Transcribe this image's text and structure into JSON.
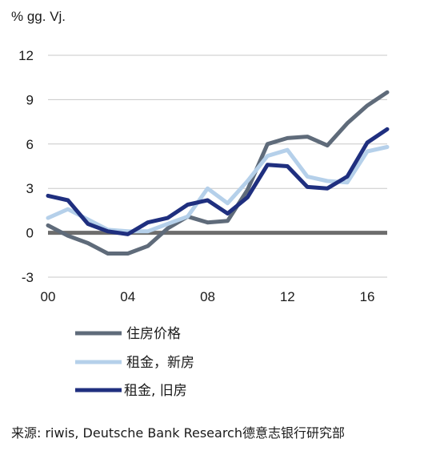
{
  "chart_data": {
    "type": "line",
    "ylabel": "% gg. Vj.",
    "ylim": [
      -3,
      12
    ],
    "yticks": [
      -3,
      0,
      3,
      6,
      9,
      12
    ],
    "xlim": [
      2000,
      2017
    ],
    "xticks": [
      {
        "year": 2000,
        "label": "00"
      },
      {
        "year": 2004,
        "label": "04"
      },
      {
        "year": 2008,
        "label": "08"
      },
      {
        "year": 2012,
        "label": "12"
      },
      {
        "year": 2016,
        "label": "16"
      }
    ],
    "grid": true,
    "zero_line": true,
    "legend_position": "bottom",
    "x": [
      2000,
      2001,
      2002,
      2003,
      2004,
      2005,
      2006,
      2007,
      2008,
      2009,
      2010,
      2011,
      2012,
      2013,
      2014,
      2015,
      2016,
      2017
    ],
    "series": [
      {
        "name": "住房价格",
        "color": "#5f6b7a",
        "values": [
          0.5,
          -0.2,
          -0.7,
          -1.4,
          -1.4,
          -0.9,
          0.3,
          1.1,
          0.7,
          0.8,
          2.9,
          6.0,
          6.4,
          6.5,
          5.9,
          7.4,
          8.6,
          9.5
        ]
      },
      {
        "name": " 租金，新房",
        "color": "#b5d0ea",
        "values": [
          1.0,
          1.6,
          0.9,
          0.2,
          0.1,
          0.1,
          0.6,
          1.1,
          3.0,
          2.0,
          3.5,
          5.2,
          5.6,
          3.8,
          3.5,
          3.4,
          5.5,
          5.8
        ]
      },
      {
        "name": "租金, 旧房",
        "color": "#1f2f7f",
        "values": [
          2.5,
          2.2,
          0.6,
          0.1,
          -0.1,
          0.7,
          1.0,
          1.9,
          2.2,
          1.3,
          2.4,
          4.6,
          4.5,
          3.1,
          3.0,
          3.8,
          6.1,
          7.0
        ]
      }
    ]
  },
  "source": "来源: riwis, Deutsche Bank Research德意志银行研究部"
}
